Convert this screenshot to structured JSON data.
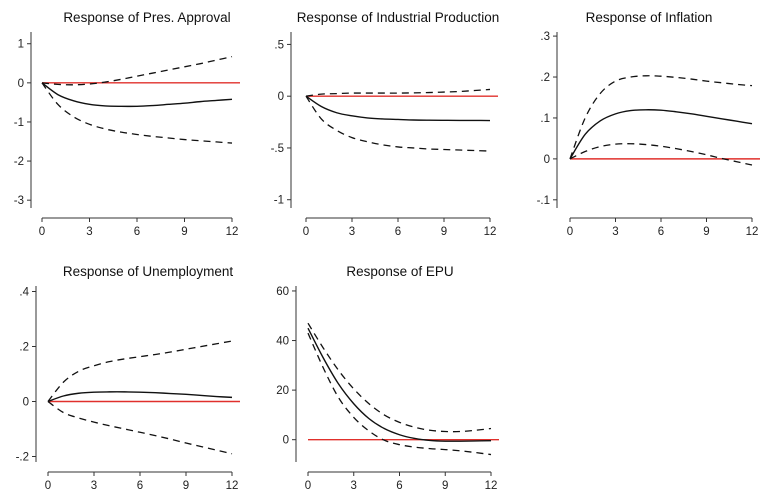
{
  "chart_data": [
    {
      "type": "line",
      "title": "Response of Pres. Approval",
      "x": [
        0,
        1,
        2,
        3,
        4,
        5,
        6,
        7,
        8,
        9,
        10,
        11,
        12
      ],
      "xticks": [
        "0",
        "3",
        "6",
        "9",
        "12"
      ],
      "yticks": [
        1,
        0,
        -1,
        -2,
        -3
      ],
      "ytick_labels": [
        "1",
        "0",
        "-1",
        "-2",
        "-3"
      ],
      "ylim": [
        -3.2,
        1.3
      ],
      "zero_line_color": "#e0302c",
      "series": [
        {
          "style": "solid",
          "values": [
            0,
            -0.3,
            -0.46,
            -0.55,
            -0.59,
            -0.6,
            -0.6,
            -0.58,
            -0.55,
            -0.52,
            -0.48,
            -0.45,
            -0.42
          ]
        },
        {
          "style": "dashed",
          "values": [
            0,
            -0.04,
            -0.05,
            -0.03,
            0.02,
            0.09,
            0.17,
            0.25,
            0.33,
            0.41,
            0.49,
            0.58,
            0.67
          ]
        },
        {
          "style": "dashed",
          "values": [
            0,
            -0.55,
            -0.87,
            -1.06,
            -1.18,
            -1.26,
            -1.32,
            -1.37,
            -1.41,
            -1.45,
            -1.48,
            -1.51,
            -1.54
          ]
        }
      ]
    },
    {
      "type": "line",
      "title": "Response of Industrial Production",
      "x": [
        0,
        1,
        2,
        3,
        4,
        5,
        6,
        7,
        8,
        9,
        10,
        11,
        12
      ],
      "xticks": [
        "0",
        "3",
        "6",
        "9",
        "12"
      ],
      "yticks": [
        0.5,
        0,
        -0.5,
        -1
      ],
      "ytick_labels": [
        ".5",
        "0",
        "-.5",
        "-1"
      ],
      "ylim": [
        -1.08,
        0.62
      ],
      "zero_line_color": "#e0302c",
      "series": [
        {
          "style": "solid",
          "values": [
            0,
            -0.1,
            -0.16,
            -0.19,
            -0.21,
            -0.22,
            -0.225,
            -0.23,
            -0.232,
            -0.233,
            -0.234,
            -0.234,
            -0.235
          ]
        },
        {
          "style": "dashed",
          "values": [
            0,
            0.02,
            0.025,
            0.03,
            0.03,
            0.03,
            0.03,
            0.032,
            0.035,
            0.04,
            0.045,
            0.055,
            0.065
          ]
        },
        {
          "style": "dashed",
          "values": [
            0,
            -0.22,
            -0.33,
            -0.4,
            -0.44,
            -0.47,
            -0.49,
            -0.5,
            -0.51,
            -0.515,
            -0.52,
            -0.525,
            -0.53
          ]
        }
      ]
    },
    {
      "type": "line",
      "title": "Response of Inflation",
      "x": [
        0,
        1,
        2,
        3,
        4,
        5,
        6,
        7,
        8,
        9,
        10,
        11,
        12
      ],
      "xticks": [
        "0",
        "3",
        "6",
        "9",
        "12"
      ],
      "yticks": [
        0.3,
        0.2,
        0.1,
        0,
        -0.1
      ],
      "ytick_labels": [
        ".3",
        ".2",
        ".1",
        "0",
        "-.1"
      ],
      "ylim": [
        -0.12,
        0.31
      ],
      "zero_line_color": "#e0302c",
      "series": [
        {
          "style": "solid",
          "values": [
            0,
            0.06,
            0.093,
            0.11,
            0.118,
            0.12,
            0.119,
            0.115,
            0.11,
            0.104,
            0.098,
            0.092,
            0.086
          ]
        },
        {
          "style": "dashed",
          "values": [
            0,
            0.1,
            0.16,
            0.19,
            0.2,
            0.203,
            0.202,
            0.199,
            0.195,
            0.19,
            0.186,
            0.182,
            0.179
          ]
        },
        {
          "style": "dashed",
          "values": [
            0,
            0.018,
            0.03,
            0.036,
            0.037,
            0.035,
            0.031,
            0.025,
            0.018,
            0.01,
            0.001,
            -0.007,
            -0.015
          ]
        }
      ]
    },
    {
      "type": "line",
      "title": "Response of Unemployment",
      "x": [
        0,
        1,
        2,
        3,
        4,
        5,
        6,
        7,
        8,
        9,
        10,
        11,
        12
      ],
      "xticks": [
        "0",
        "3",
        "6",
        "9",
        "12"
      ],
      "yticks": [
        0.4,
        0.2,
        0,
        -0.2
      ],
      "ytick_labels": [
        ".4",
        ".2",
        "0",
        "-.2"
      ],
      "ylim": [
        -0.22,
        0.42
      ],
      "zero_line_color": "#e0302c",
      "series": [
        {
          "style": "solid",
          "values": [
            0,
            0.02,
            0.03,
            0.034,
            0.035,
            0.035,
            0.034,
            0.032,
            0.029,
            0.026,
            0.022,
            0.018,
            0.015
          ]
        },
        {
          "style": "dashed",
          "values": [
            0,
            0.07,
            0.11,
            0.13,
            0.145,
            0.155,
            0.163,
            0.171,
            0.18,
            0.19,
            0.2,
            0.21,
            0.22
          ]
        },
        {
          "style": "dashed",
          "values": [
            0,
            -0.04,
            -0.06,
            -0.075,
            -0.088,
            -0.1,
            -0.112,
            -0.124,
            -0.137,
            -0.151,
            -0.164,
            -0.177,
            -0.19
          ]
        }
      ]
    },
    {
      "type": "line",
      "title": "Response of EPU",
      "x": [
        0,
        1,
        2,
        3,
        4,
        5,
        6,
        7,
        8,
        9,
        10,
        11,
        12
      ],
      "xticks": [
        "0",
        "3",
        "6",
        "9",
        "12"
      ],
      "yticks": [
        60,
        40,
        20,
        0
      ],
      "ytick_labels": [
        "60",
        "40",
        "20",
        "0"
      ],
      "ylim": [
        -9,
        62
      ],
      "zero_line_color": "#e0302c",
      "series": [
        {
          "style": "solid",
          "values": [
            45,
            33,
            22.5,
            14.5,
            8.5,
            4.5,
            2,
            0.5,
            -0.3,
            -0.6,
            -0.6,
            -0.5,
            -0.4
          ]
        },
        {
          "style": "dashed",
          "values": [
            47,
            37,
            28,
            20.5,
            14.5,
            10,
            7,
            5,
            3.8,
            3.3,
            3.3,
            3.8,
            4.5
          ]
        },
        {
          "style": "dashed",
          "values": [
            43,
            29,
            17,
            9,
            3.5,
            -0.2,
            -2,
            -3,
            -3.6,
            -4,
            -4.5,
            -5.2,
            -6
          ]
        }
      ]
    }
  ]
}
